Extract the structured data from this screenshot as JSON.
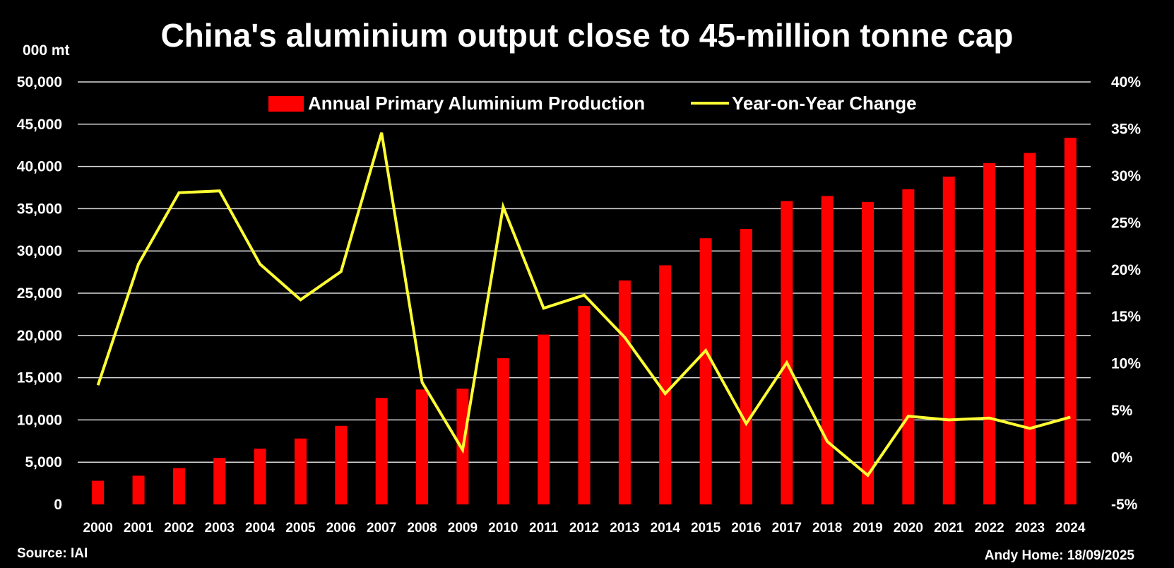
{
  "footer": {
    "source": "Source: IAI",
    "credit": "Andy Home: 18/09/2025"
  },
  "chart_data": {
    "type": "bar",
    "title": "China's aluminium output close to 45-million tonne cap",
    "y_unit_label": "000 mt",
    "categories": [
      "2000",
      "2001",
      "2002",
      "2003",
      "2004",
      "2005",
      "2006",
      "2007",
      "2008",
      "2009",
      "2010",
      "2011",
      "2012",
      "2013",
      "2014",
      "2015",
      "2016",
      "2017",
      "2018",
      "2019",
      "2020",
      "2021",
      "2022",
      "2023",
      "2024"
    ],
    "series": [
      {
        "name": "Annual Primary Aluminium Production",
        "type": "bar",
        "axis": "left",
        "color": "#ff0000",
        "values": [
          2800,
          3400,
          4300,
          5500,
          6600,
          7800,
          9300,
          12600,
          13600,
          13700,
          17300,
          20100,
          23500,
          26500,
          28300,
          31500,
          32600,
          35900,
          36500,
          35800,
          37300,
          38800,
          40400,
          41600,
          43400
        ]
      },
      {
        "name": "Year-on-Year Change",
        "type": "line",
        "axis": "right",
        "color": "#ffff33",
        "values": [
          7.7,
          20.6,
          28.2,
          28.4,
          20.6,
          16.8,
          19.8,
          34.6,
          8.0,
          0.8,
          26.7,
          15.9,
          17.3,
          12.8,
          6.8,
          11.4,
          3.6,
          10.1,
          1.7,
          -1.9,
          4.4,
          4.0,
          4.2,
          3.1,
          4.3
        ]
      }
    ],
    "y_left": {
      "min": 0,
      "max": 50000,
      "step": 5000,
      "ticks": [
        "0",
        "5,000",
        "10,000",
        "15,000",
        "20,000",
        "25,000",
        "30,000",
        "35,000",
        "40,000",
        "45,000",
        "50,000"
      ]
    },
    "y_right": {
      "min": -5,
      "max": 40,
      "step": 5,
      "ticks": [
        "-5%",
        "0%",
        "5%",
        "10%",
        "15%",
        "20%",
        "25%",
        "30%",
        "35%",
        "40%"
      ]
    },
    "grid": true,
    "legend_position": "top-center",
    "background": "#000000"
  }
}
